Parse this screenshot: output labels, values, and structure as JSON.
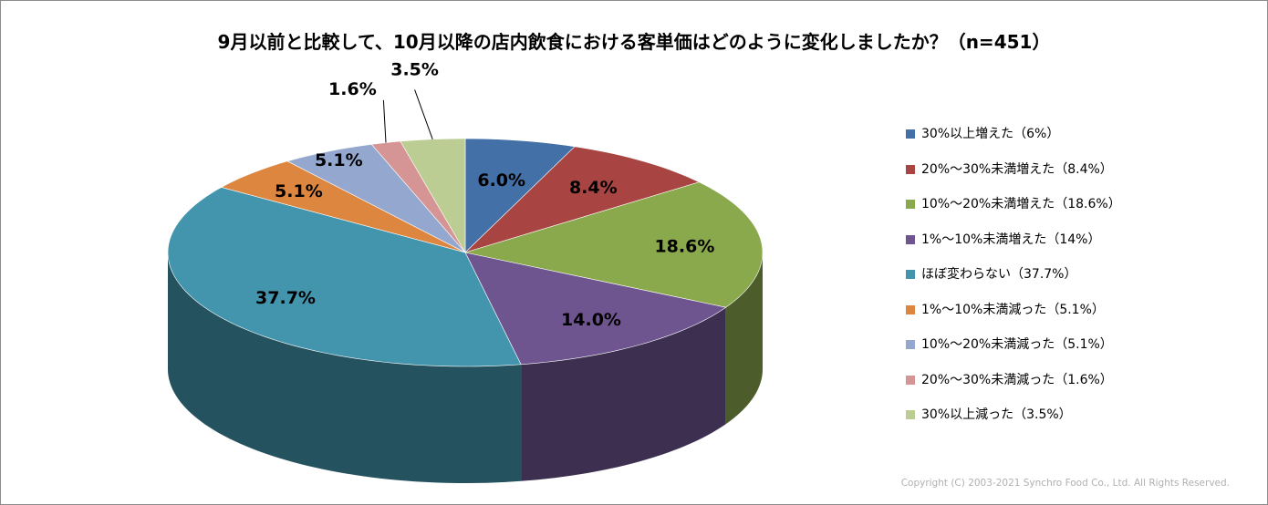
{
  "chart_data": {
    "type": "pie",
    "title": "9月以前と比較して、10月以降の店内飲食における客単価はどのように変化しましたか？（n=451）",
    "categories": [
      "30%以上増えた（6%）",
      "20%～30%未満増えた（8.4%）",
      "10%～20%未満増えた（18.6%）",
      "1%～10%未満増えた（14%）",
      "ほぼ変わらない（37.7%）",
      "1%～10%未満減った（5.1%）",
      "10%～20%未満減った（5.1%）",
      "20%～30%未満減った（1.6%）",
      "30%以上減った（3.5%）"
    ],
    "values": [
      6.0,
      8.4,
      18.6,
      14.0,
      37.7,
      5.1,
      5.1,
      1.6,
      3.5
    ],
    "data_labels": [
      "6.0%",
      "8.4%",
      "18.6%",
      "14.0%",
      "37.7%",
      "5.1%",
      "5.1%",
      "1.6%",
      "3.5%"
    ],
    "colors": [
      "#4470a8",
      "#a84442",
      "#8aa84c",
      "#6f5590",
      "#4395ad",
      "#dc8640",
      "#94a8cf",
      "#d59594",
      "#bbcd92"
    ],
    "legend_position": "right",
    "style": "3d-pie"
  },
  "copyright": "Copyright (C) 2003-2021   Synchro Food Co., Ltd. All Rights Reserved."
}
